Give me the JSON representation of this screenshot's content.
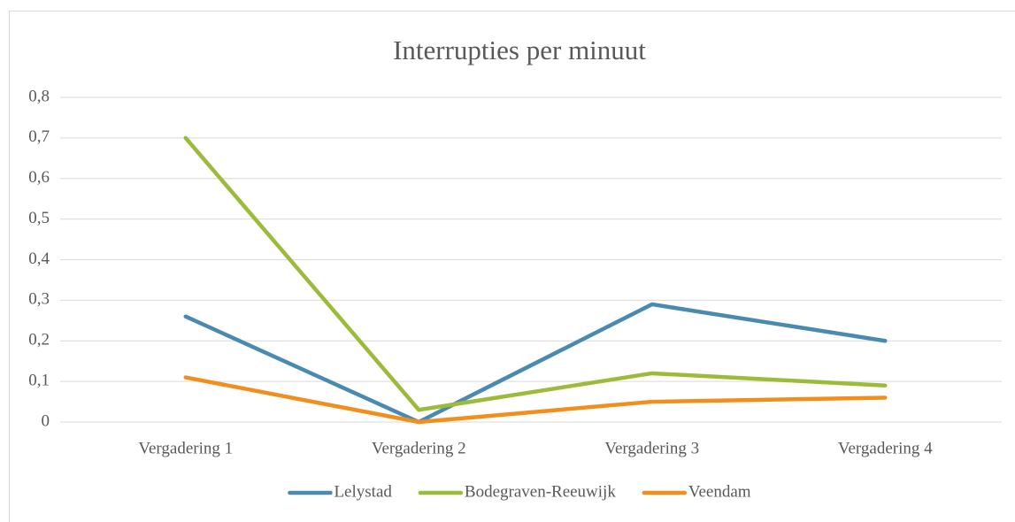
{
  "chart_data": {
    "type": "line",
    "title": "Interrupties per minuut",
    "categories": [
      "Vergadering 1",
      "Vergadering 2",
      "Vergadering 3",
      "Vergadering 4"
    ],
    "series": [
      {
        "name": "Lelystad",
        "color": "#4a8ab0",
        "values": [
          0.26,
          0,
          0.29,
          0.2
        ]
      },
      {
        "name": "Bodegraven-Reeuwijk",
        "color": "#9dbb3a",
        "values": [
          0.7,
          0.03,
          0.12,
          0.09
        ]
      },
      {
        "name": "Veendam",
        "color": "#f28e1c",
        "values": [
          0.11,
          0,
          0.05,
          0.06
        ]
      }
    ],
    "ylim": [
      0,
      0.8
    ],
    "yticks": [
      0,
      {
        "value": 0.1,
        "label": "0,1"
      },
      {
        "value": 0.2,
        "label": "0,2"
      },
      {
        "value": 0.3,
        "label": "0,3"
      },
      {
        "value": 0.4,
        "label": "0,4"
      },
      {
        "value": 0.5,
        "label": "0,5"
      },
      {
        "value": 0.6,
        "label": "0,6"
      },
      {
        "value": 0.7,
        "label": "0,7"
      },
      {
        "value": 0.8,
        "label": "0,8"
      }
    ],
    "grid": true,
    "legend": "bottom"
  }
}
